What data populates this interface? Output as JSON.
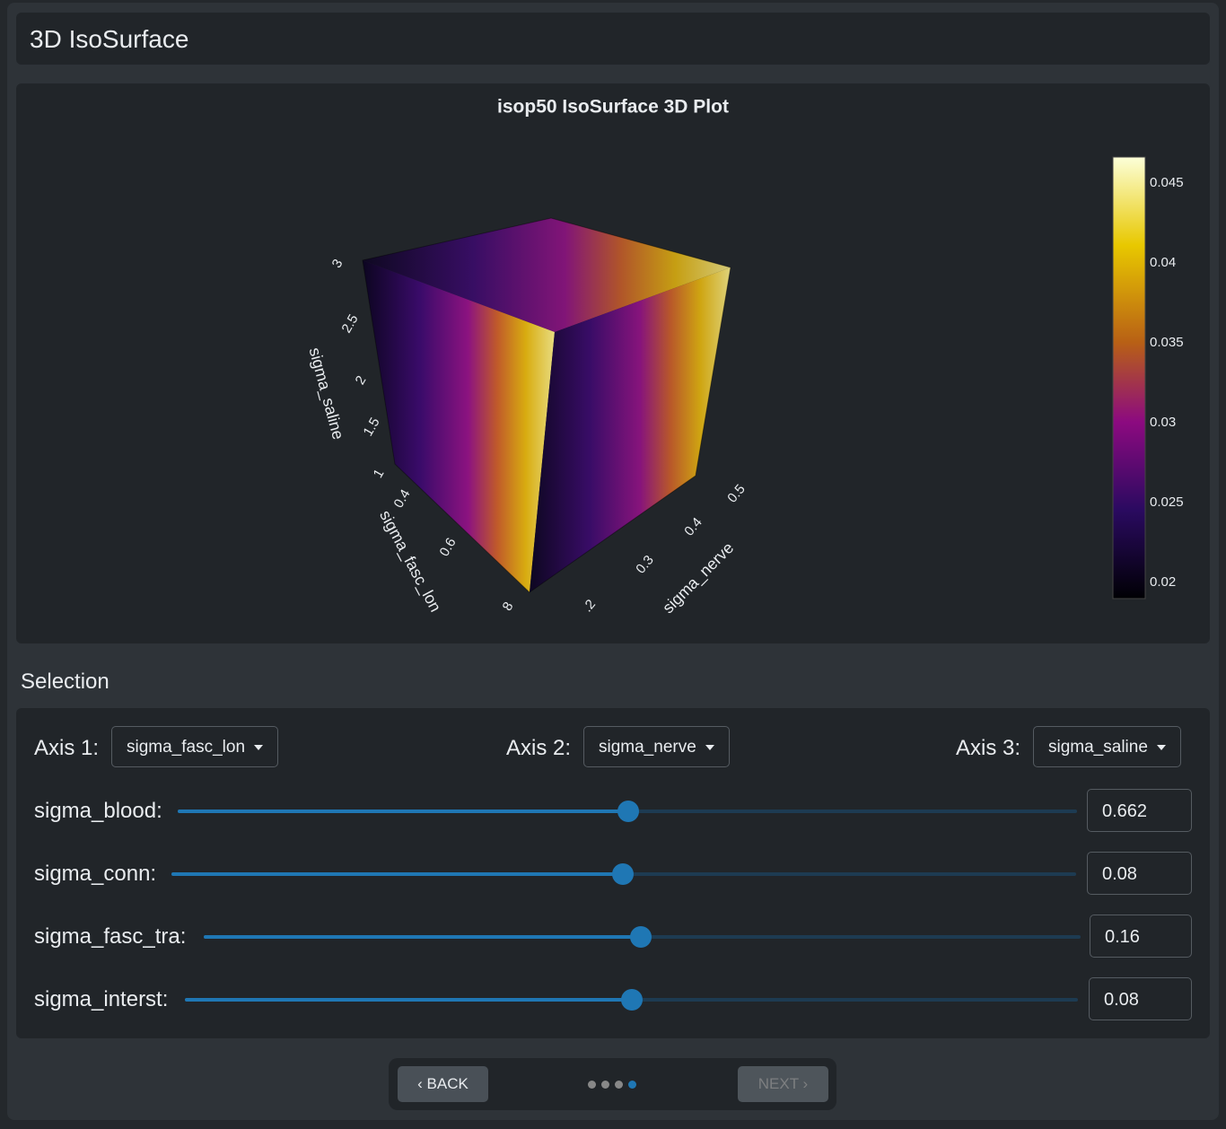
{
  "header": {
    "title": "3D IsoSurface"
  },
  "plot": {
    "title": "isop50 IsoSurface 3D Plot",
    "axes": {
      "z": {
        "label": "sigma_saline",
        "ticks": [
          "1",
          "1.5",
          "2",
          "2.5",
          "3"
        ]
      },
      "x": {
        "label": "sigma_fasc_lon",
        "ticks": [
          "0.4",
          "0.6",
          "8"
        ]
      },
      "y": {
        "label": "sigma_nerve",
        "ticks": [
          ".2",
          "0.3",
          "0.4",
          "0.5"
        ]
      }
    },
    "colorbar": {
      "ticks": [
        0.045,
        0.04,
        0.035,
        0.03,
        0.025,
        0.02
      ]
    }
  },
  "selection": {
    "title": "Selection",
    "axes": [
      {
        "label": "Axis 1:",
        "value": "sigma_fasc_lon"
      },
      {
        "label": "Axis 2:",
        "value": "sigma_nerve"
      },
      {
        "label": "Axis 3:",
        "value": "sigma_saline"
      }
    ],
    "sliders": [
      {
        "label": "sigma_blood:",
        "value": "0.662"
      },
      {
        "label": "sigma_conn:",
        "value": "0.08"
      },
      {
        "label": "sigma_fasc_tra:",
        "value": "0.16"
      },
      {
        "label": "sigma_interst:",
        "value": "0.08"
      }
    ]
  },
  "nav": {
    "back": "BACK",
    "next": "NEXT"
  }
}
